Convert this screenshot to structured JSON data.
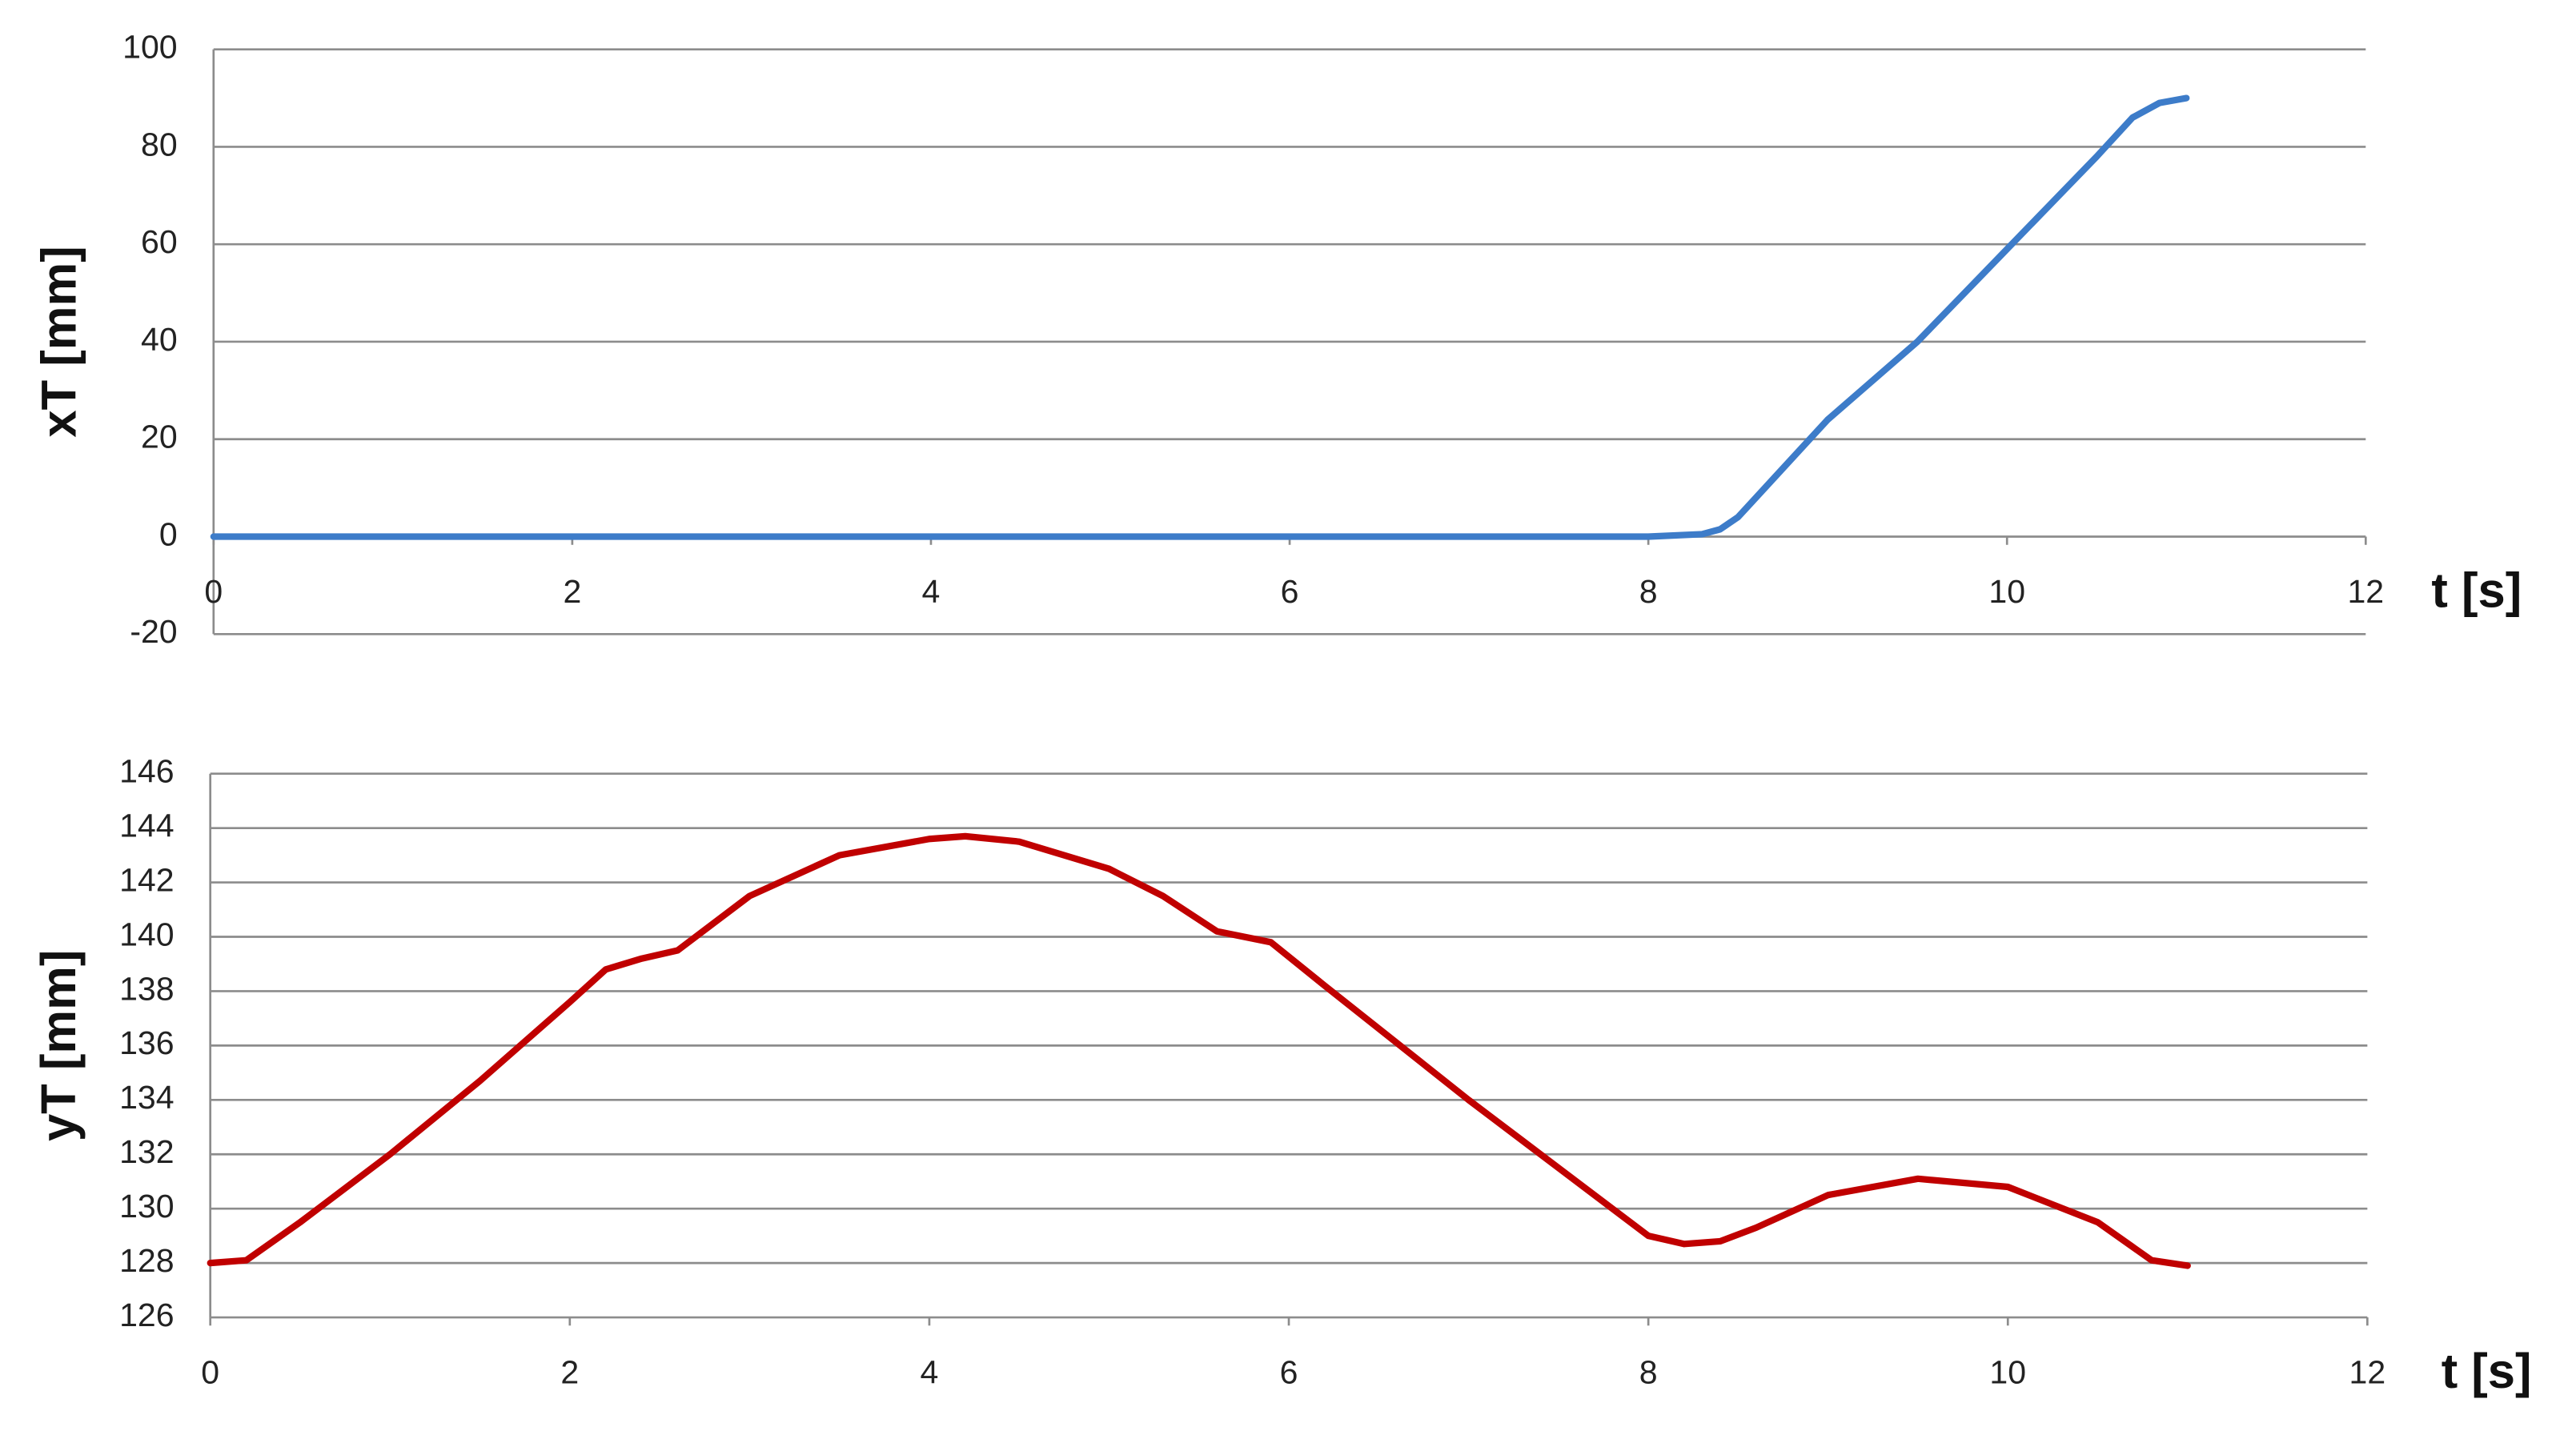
{
  "chart_data": [
    {
      "type": "line",
      "y_label": "xT [mm]",
      "x_label": "t [s]",
      "xlim": [
        0,
        12
      ],
      "xticks": [
        0,
        2,
        4,
        6,
        8,
        10,
        12
      ],
      "ylim": [
        -20,
        100
      ],
      "yticks": [
        -20,
        0,
        20,
        40,
        60,
        80,
        100
      ],
      "grid": true,
      "series": [
        {
          "color": "#3d7cc9",
          "x": [
            0,
            1,
            2,
            3,
            4,
            5,
            6,
            7,
            8,
            8.3,
            8.4,
            8.5,
            8.7,
            9,
            9.5,
            10,
            10.5,
            10.7,
            10.85,
            11
          ],
          "values": [
            0,
            0,
            0,
            0,
            0,
            0,
            0,
            0,
            0,
            0.5,
            1.5,
            4,
            12,
            24,
            40,
            59,
            78,
            86,
            89,
            90
          ]
        }
      ]
    },
    {
      "type": "line",
      "y_label": "yT [mm]",
      "x_label": "t [s]",
      "xlim": [
        0,
        12
      ],
      "xticks": [
        0,
        2,
        4,
        6,
        8,
        10,
        12
      ],
      "ylim": [
        126,
        146
      ],
      "yticks": [
        126,
        128,
        130,
        132,
        134,
        136,
        138,
        140,
        142,
        144,
        146
      ],
      "grid": true,
      "series": [
        {
          "color": "#c00000",
          "x": [
            0,
            0.2,
            0.5,
            1,
            1.5,
            2,
            2.2,
            2.4,
            2.6,
            2.8,
            3,
            3.5,
            4,
            4.2,
            4.5,
            5,
            5.3,
            5.6,
            5.9,
            6.2,
            7,
            7.5,
            8,
            8.2,
            8.4,
            8.6,
            9,
            9.5,
            10,
            10.5,
            10.8,
            11
          ],
          "values": [
            128,
            128.1,
            129.5,
            132,
            134.7,
            137.6,
            138.8,
            139.2,
            139.5,
            140.5,
            141.5,
            143,
            143.6,
            143.7,
            143.5,
            142.5,
            141.5,
            140.2,
            139.8,
            138.2,
            134,
            131.5,
            129,
            128.7,
            128.8,
            129.3,
            130.5,
            131.1,
            130.8,
            129.5,
            128.1,
            127.9
          ]
        }
      ]
    }
  ]
}
